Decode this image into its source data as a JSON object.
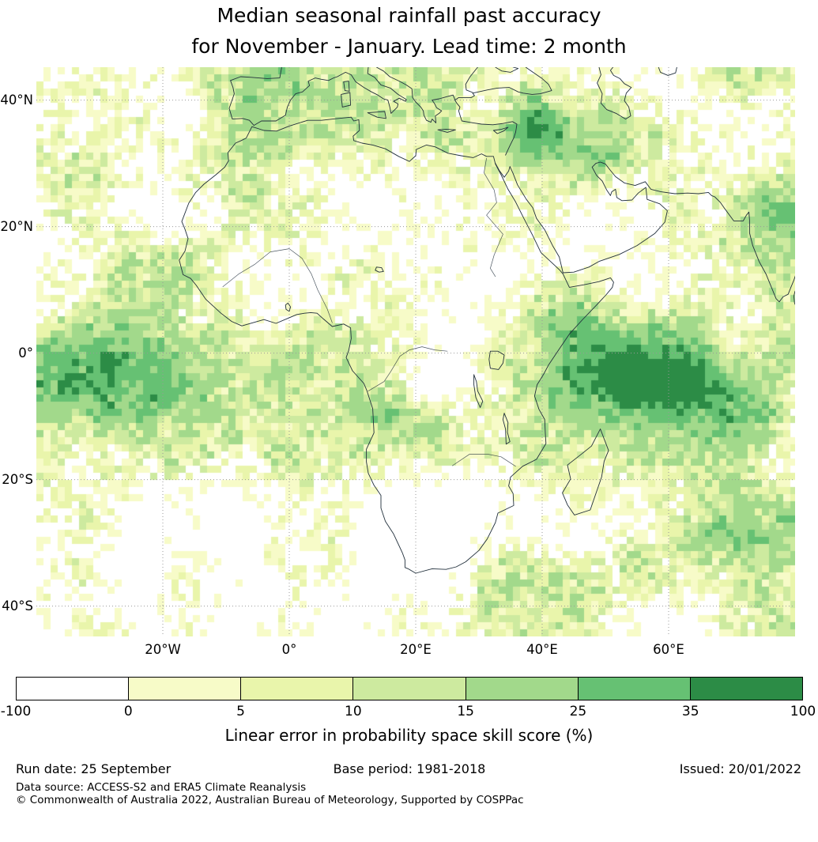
{
  "title": {
    "line1": "Median seasonal rainfall past accuracy",
    "line2": "for November - January. Lead time: 2 month"
  },
  "map": {
    "lat_ticks": [
      {
        "label": "40°N",
        "lat": 40
      },
      {
        "label": "20°N",
        "lat": 20
      },
      {
        "label": "0°",
        "lat": 0
      },
      {
        "label": "20°S",
        "lat": -20
      },
      {
        "label": "40°S",
        "lat": -40
      }
    ],
    "lon_ticks": [
      {
        "label": "20°W",
        "lon": -20
      },
      {
        "label": "0°",
        "lon": 0
      },
      {
        "label": "20°E",
        "lon": 20
      },
      {
        "label": "40°E",
        "lon": 40
      },
      {
        "label": "60°E",
        "lon": 60
      }
    ]
  },
  "colorbar": {
    "label": "Linear error in probability space skill score (%)",
    "tick_labels": [
      "-100",
      "0",
      "5",
      "10",
      "15",
      "25",
      "35",
      "100"
    ],
    "segment_colors": [
      "#ffffff",
      "#f7fbc8",
      "#e9f5ab",
      "#cdea9f",
      "#a2d98b",
      "#66c173",
      "#2c8c46"
    ]
  },
  "footer": {
    "run_date": "Run date: 25 September",
    "base_period": "Base period: 1981-2018",
    "issued": "Issued: 20/01/2022",
    "data_source": "Data source: ACCESS-S2 and ERA5 Climate Reanalysis",
    "copyright": "© Commonwealth of Australia 2022, Australian Bureau of Meteorology, Supported by COSPPac"
  },
  "chart_data": {
    "type": "heatmap",
    "title": "Median seasonal rainfall past accuracy for November - January. Lead time: 2 month",
    "colorbar_label": "Linear error in probability space skill score (%)",
    "colorbar_bounds": [
      -100,
      0,
      5,
      10,
      15,
      25,
      35,
      100
    ],
    "colorbar_colors": [
      "#ffffff",
      "#f7fbc8",
      "#e9f5ab",
      "#cdea9f",
      "#a2d98b",
      "#66c173",
      "#2c8c46"
    ],
    "extent": {
      "lon_min": -40,
      "lon_max": 80,
      "lat_min": -44.8,
      "lat_max": 45.2
    },
    "graticule": "dotted gray gridlines every 20 degrees",
    "high_skill_regions": [
      "equatorial Atlantic west of Africa",
      "western Indian Ocean and Horn of Africa",
      "Middle East / Caucasus",
      "northern India",
      "southeast Indian Ocean"
    ],
    "low_skill_regions": [
      "southern Africa interior",
      "Congo basin",
      "western Sahara",
      "central south Indian Ocean"
    ]
  }
}
